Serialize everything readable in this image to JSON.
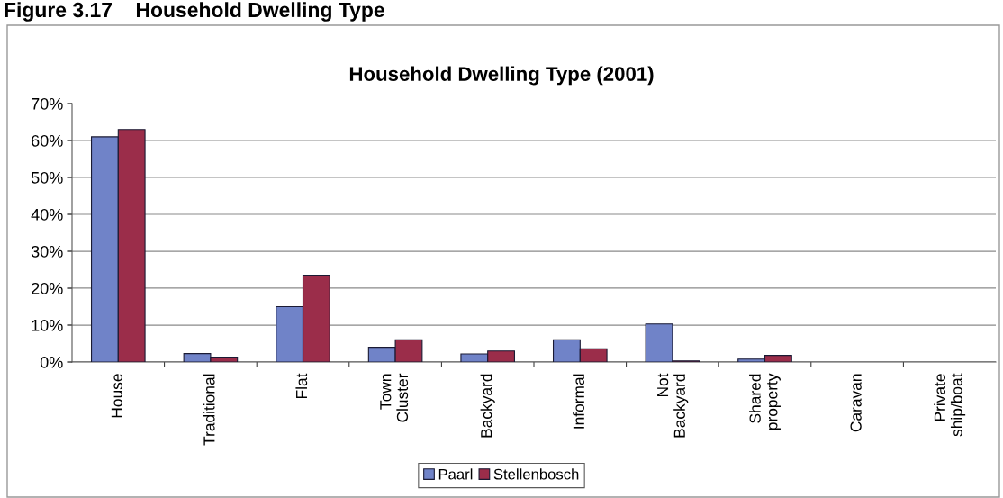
{
  "chart_data": {
    "type": "bar",
    "title": "Household Dwelling Type (2001)",
    "annotations": [
      "Figure 3.17    Household Dwelling Type"
    ],
    "categories": [
      "House",
      "Traditional",
      "Flat",
      "Town Cluster",
      "Backyard",
      "Informal",
      "Not Backyard",
      "Shared property",
      "Caravan",
      "Private ship/boat"
    ],
    "series": [
      {
        "name": "Paarl",
        "color": "#7083c8",
        "values": [
          61,
          2.3,
          15,
          4,
          2.2,
          6,
          10.3,
          0.8,
          0,
          0
        ]
      },
      {
        "name": "Stellenbosch",
        "color": "#9b2d4a",
        "values": [
          63,
          1.3,
          23.5,
          6,
          3,
          3.6,
          0.3,
          1.8,
          0,
          0
        ]
      }
    ],
    "ylim": [
      0,
      70
    ],
    "yticks": [
      {
        "value": 0,
        "label": "0%"
      },
      {
        "value": 10,
        "label": "10%"
      },
      {
        "value": 20,
        "label": "20%"
      },
      {
        "value": 30,
        "label": "30%"
      },
      {
        "value": 40,
        "label": "40%"
      },
      {
        "value": 50,
        "label": "50%"
      },
      {
        "value": 60,
        "label": "60%"
      },
      {
        "value": 70,
        "label": "70%"
      }
    ],
    "grid": "y",
    "legend": "bottom"
  }
}
